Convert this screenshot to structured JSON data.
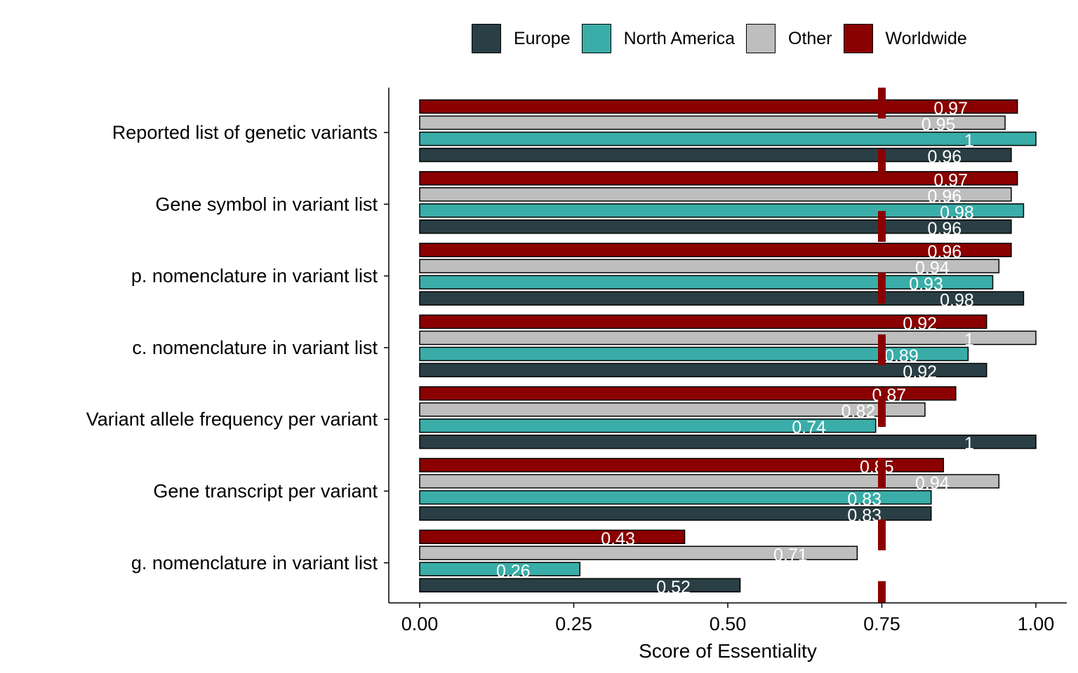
{
  "chart_data": {
    "type": "bar",
    "orientation": "horizontal",
    "xlabel": "Score of Essentiality",
    "ylabel": "",
    "xlim": [
      0,
      1
    ],
    "x_ticks": [
      "0.00",
      "0.25",
      "0.50",
      "0.75",
      "1.00"
    ],
    "reference_line": {
      "x": 0.75,
      "style": "dashed",
      "color": "#8B0000"
    },
    "legend_position": "top",
    "categories": [
      "Reported list of genetic variants",
      "Gene symbol in variant list",
      "p. nomenclature in variant list",
      "c. nomenclature in variant list",
      "Variant allele frequency per variant",
      "Gene transcript per variant",
      "g. nomenclature in variant list"
    ],
    "series": [
      {
        "name": "Worldwide",
        "color": "#8B0000",
        "values": [
          0.97,
          0.97,
          0.96,
          0.92,
          0.87,
          0.85,
          0.43
        ],
        "labels": [
          "0.97",
          "0.97",
          "0.96",
          "0.92",
          "0.87",
          "0.85",
          "0.43"
        ]
      },
      {
        "name": "Other",
        "color": "#BEBEBE",
        "values": [
          0.95,
          0.96,
          0.94,
          1.0,
          0.82,
          0.94,
          0.71
        ],
        "labels": [
          "0.95",
          "0.96",
          "0.94",
          "1",
          "0.82",
          "0.94",
          "0.71"
        ]
      },
      {
        "name": "North America",
        "color": "#3AADA8",
        "values": [
          1.0,
          0.98,
          0.93,
          0.89,
          0.74,
          0.83,
          0.26
        ],
        "labels": [
          "1",
          "0.98",
          "0.93",
          "0.89",
          "0.74",
          "0.83",
          "0.26"
        ]
      },
      {
        "name": "Europe",
        "color": "#2A3F45",
        "values": [
          0.96,
          0.96,
          0.98,
          0.92,
          1.0,
          0.83,
          0.52
        ],
        "labels": [
          "0.96",
          "0.96",
          "0.98",
          "0.92",
          "1",
          "0.83",
          "0.52"
        ]
      }
    ],
    "legend": [
      {
        "name": "Europe",
        "color": "#2A3F45"
      },
      {
        "name": "North America",
        "color": "#3AADA8"
      },
      {
        "name": "Other",
        "color": "#BEBEBE"
      },
      {
        "name": "Worldwide",
        "color": "#8B0000"
      }
    ]
  }
}
